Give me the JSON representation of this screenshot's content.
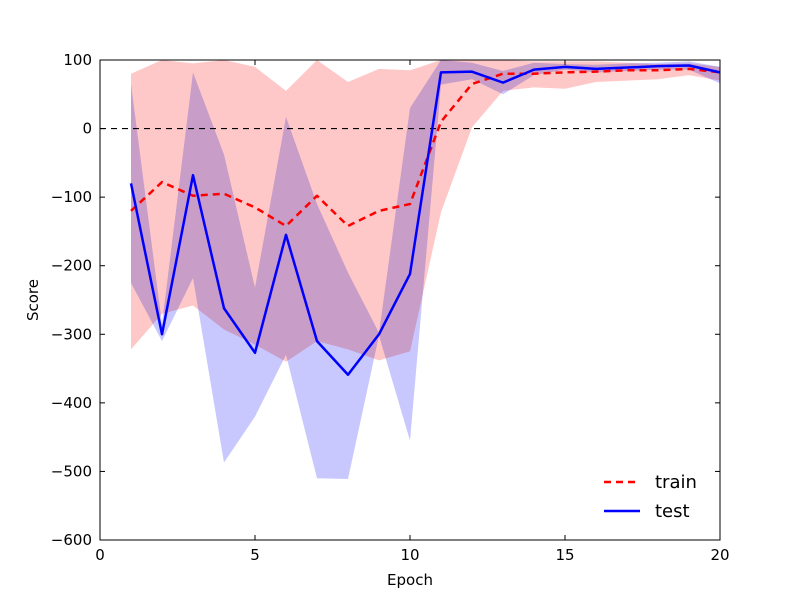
{
  "chart_data": {
    "type": "line",
    "xlabel": "Epoch",
    "ylabel": "Score",
    "xlim": [
      0,
      20
    ],
    "ylim": [
      -600,
      100
    ],
    "xticks": [
      0,
      5,
      10,
      15,
      20
    ],
    "yticks": [
      -600,
      -500,
      -400,
      -300,
      -200,
      -100,
      0,
      100
    ],
    "grid": false,
    "legend_position": "lower-right",
    "reference_line": {
      "y": 0,
      "style": "dashed",
      "color": "#000000"
    },
    "x": [
      1,
      2,
      3,
      4,
      5,
      6,
      7,
      8,
      9,
      10,
      11,
      12,
      13,
      14,
      15,
      16,
      17,
      18,
      19,
      20
    ],
    "series": [
      {
        "name": "train",
        "color": "#ff0000",
        "line_style": "dashed",
        "band_color": "#ffc8c8",
        "values": [
          -120,
          -78,
          -98,
          -95,
          -115,
          -142,
          -98,
          -142,
          -120,
          -110,
          10,
          65,
          80,
          80,
          82,
          83,
          85,
          85,
          87,
          82
        ],
        "upper": [
          80,
          100,
          95,
          100,
          90,
          55,
          100,
          68,
          87,
          85,
          100,
          100,
          100,
          98,
          98,
          98,
          96,
          94,
          95,
          90
        ],
        "lower": [
          -322,
          -270,
          -258,
          -293,
          -315,
          -340,
          -310,
          -322,
          -338,
          -325,
          -122,
          2,
          55,
          60,
          58,
          68,
          70,
          72,
          78,
          70
        ]
      },
      {
        "name": "test",
        "color": "#0000ff",
        "line_style": "solid",
        "band_color": "#c8c8ff",
        "values": [
          -80,
          -300,
          -68,
          -262,
          -327,
          -155,
          -310,
          -359,
          -300,
          -212,
          82,
          83,
          67,
          86,
          90,
          87,
          89,
          91,
          92,
          82
        ],
        "upper": [
          65,
          -285,
          82,
          -38,
          -232,
          17,
          -110,
          -210,
          -298,
          30,
          100,
          96,
          84,
          96,
          94,
          93,
          95,
          96,
          98,
          90
        ],
        "lower": [
          -225,
          -310,
          -218,
          -487,
          -420,
          -330,
          -510,
          -511,
          -302,
          -455,
          64,
          72,
          50,
          78,
          86,
          82,
          84,
          86,
          86,
          66
        ]
      }
    ]
  }
}
